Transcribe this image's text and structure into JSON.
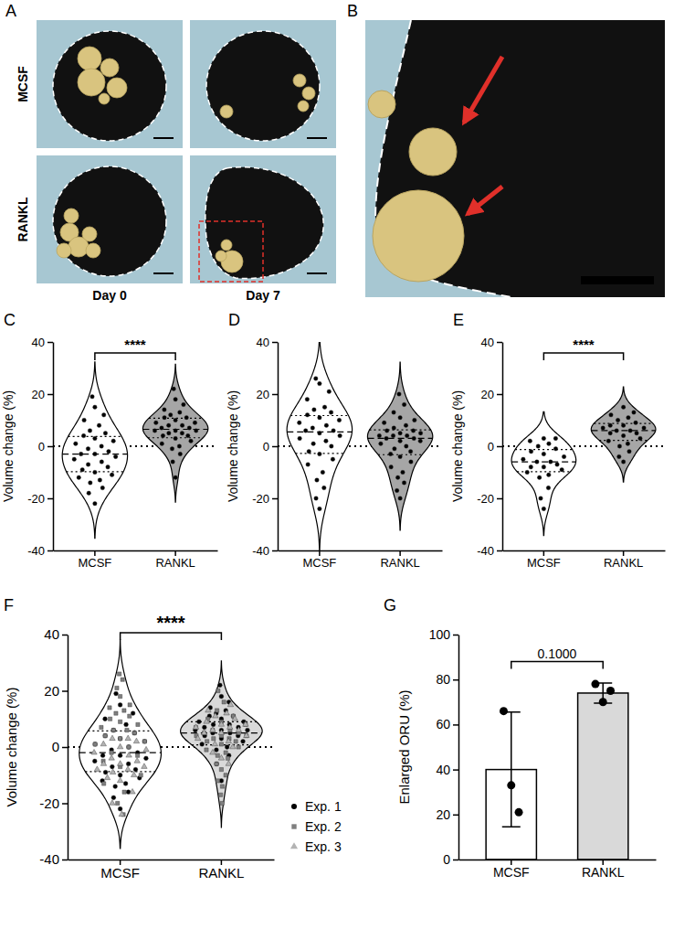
{
  "images": {
    "A": {
      "panel": "A",
      "rows": [
        "MCSF",
        "RANKL"
      ],
      "columns": [
        "Day 0",
        "Day 7"
      ]
    },
    "B": {
      "panel": "B"
    }
  },
  "chart_data": [
    {
      "panel": "C",
      "type": "violin",
      "categories": [
        "MCSF",
        "RANKL"
      ],
      "values": [
        [
          -22,
          -18,
          -16,
          -14,
          -13,
          -12,
          -11,
          -10,
          -9,
          -8,
          -7,
          -6,
          -5,
          -4,
          -3,
          -3,
          -2,
          -1,
          0,
          1,
          2,
          3,
          4,
          5,
          6,
          8,
          10,
          12,
          15,
          19
        ],
        [
          -12,
          -6,
          -3,
          -1,
          0,
          1,
          2,
          3,
          4,
          4,
          5,
          5,
          6,
          6,
          6,
          7,
          7,
          8,
          8,
          9,
          9,
          10,
          11,
          11,
          12,
          13,
          14,
          16,
          18,
          22
        ]
      ],
      "colors": [
        "#ffffff",
        "#a6a6a6"
      ],
      "ylabel": "Volume change (%)",
      "ylim": [
        -40,
        40
      ],
      "yticks": [
        -40,
        -20,
        0,
        20,
        40
      ],
      "hline": 0,
      "annotations": [
        {
          "text": "****"
        }
      ]
    },
    {
      "panel": "D",
      "type": "violin",
      "categories": [
        "MCSF",
        "RANKL"
      ],
      "values": [
        [
          -24,
          -20,
          -16,
          -13,
          -10,
          -7,
          -5,
          -3,
          -2,
          0,
          1,
          2,
          3,
          4,
          5,
          6,
          6,
          7,
          8,
          9,
          10,
          11,
          12,
          13,
          14,
          15,
          18,
          21,
          24,
          26
        ],
        [
          -20,
          -17,
          -14,
          -12,
          -10,
          -8,
          -6,
          -4,
          -3,
          -2,
          -1,
          0,
          1,
          2,
          2,
          3,
          3,
          4,
          4,
          4,
          5,
          5,
          6,
          6,
          7,
          8,
          9,
          10,
          11,
          13,
          16,
          20
        ]
      ],
      "colors": [
        "#ffffff",
        "#a6a6a6"
      ],
      "ylabel": "Volume change (%)",
      "ylim": [
        -40,
        40
      ],
      "yticks": [
        -40,
        -20,
        0,
        20,
        40
      ],
      "hline": 0
    },
    {
      "panel": "E",
      "type": "violin",
      "categories": [
        "MCSF",
        "RANKL"
      ],
      "values": [
        [
          -24,
          -20,
          -16,
          -12,
          -11,
          -10,
          -9,
          -8,
          -8,
          -7,
          -6,
          -6,
          -5,
          -4,
          -3,
          -2,
          -1,
          0,
          1,
          2,
          3,
          3
        ],
        [
          -6,
          -4,
          -2,
          0,
          1,
          2,
          3,
          4,
          5,
          5,
          6,
          6,
          7,
          7,
          8,
          8,
          9,
          10,
          11,
          12,
          13,
          15
        ]
      ],
      "colors": [
        "#ffffff",
        "#a6a6a6"
      ],
      "ylabel": "Volume change (%)",
      "ylim": [
        -40,
        40
      ],
      "yticks": [
        -40,
        -20,
        0,
        20,
        40
      ],
      "hline": 0,
      "annotations": [
        {
          "text": "****"
        }
      ]
    },
    {
      "panel": "F",
      "type": "violin",
      "categories": [
        "MCSF",
        "RANKL"
      ],
      "series": [
        {
          "name": "Exp. 1",
          "marker": "circle",
          "color": "#000000",
          "values": [
            [
              -22,
              -18,
              -16,
              -14,
              -13,
              -12,
              -11,
              -10,
              -9,
              -8,
              -7,
              -6,
              -5,
              -4,
              -3,
              -3,
              -2,
              -1,
              0,
              1,
              2,
              3,
              4,
              5,
              6,
              8,
              10,
              12,
              15,
              19
            ],
            [
              -12,
              -6,
              -3,
              -1,
              0,
              1,
              2,
              3,
              4,
              4,
              5,
              5,
              6,
              6,
              6,
              7,
              7,
              8,
              8,
              9,
              9,
              10,
              11,
              11,
              12,
              13,
              14,
              16,
              18,
              22
            ]
          ]
        },
        {
          "name": "Exp. 2",
          "marker": "square",
          "color": "#7f7f7f",
          "values": [
            [
              -24,
              -20,
              -16,
              -13,
              -10,
              -7,
              -5,
              -3,
              -2,
              0,
              1,
              2,
              3,
              4,
              5,
              6,
              6,
              7,
              8,
              9,
              10,
              11,
              12,
              13,
              14,
              15,
              18,
              21,
              24,
              26
            ],
            [
              -20,
              -17,
              -14,
              -12,
              -10,
              -8,
              -6,
              -4,
              -3,
              -2,
              -1,
              0,
              1,
              2,
              2,
              3,
              3,
              4,
              4,
              4,
              5,
              5,
              6,
              6,
              7,
              8,
              9,
              10,
              11,
              13,
              16,
              20
            ]
          ]
        },
        {
          "name": "Exp. 3",
          "marker": "triangle",
          "color": "#b3b3b3",
          "values": [
            [
              -24,
              -20,
              -16,
              -12,
              -11,
              -10,
              -9,
              -8,
              -8,
              -7,
              -6,
              -6,
              -5,
              -4,
              -3,
              -2,
              -1,
              0,
              1,
              2,
              3,
              3
            ],
            [
              -6,
              -4,
              -2,
              0,
              1,
              2,
              3,
              4,
              5,
              5,
              6,
              6,
              7,
              7,
              8,
              8,
              9,
              10,
              11,
              12,
              13,
              15
            ]
          ]
        }
      ],
      "colors": [
        "#ffffff",
        "#d9d9d9"
      ],
      "ylabel": "Volume change (%)",
      "ylim": [
        -40,
        40
      ],
      "yticks": [
        -40,
        -20,
        0,
        20,
        40
      ],
      "hline": 0,
      "legend": "right",
      "annotations": [
        {
          "text": "****"
        }
      ]
    },
    {
      "panel": "G",
      "type": "bar",
      "categories": [
        "MCSF",
        "RANKL"
      ],
      "values": [
        40,
        74
      ],
      "errors": [
        25.5,
        4.5
      ],
      "points": [
        [
          33,
          66,
          21
        ],
        [
          70,
          78,
          75
        ]
      ],
      "colors": [
        "#ffffff",
        "#d9d9d9"
      ],
      "ylabel": "Enlarged ORU (%)",
      "ylim": [
        0,
        100
      ],
      "yticks": [
        0,
        20,
        40,
        60,
        80,
        100
      ],
      "annotations": [
        {
          "text": "0.1000"
        }
      ]
    }
  ]
}
